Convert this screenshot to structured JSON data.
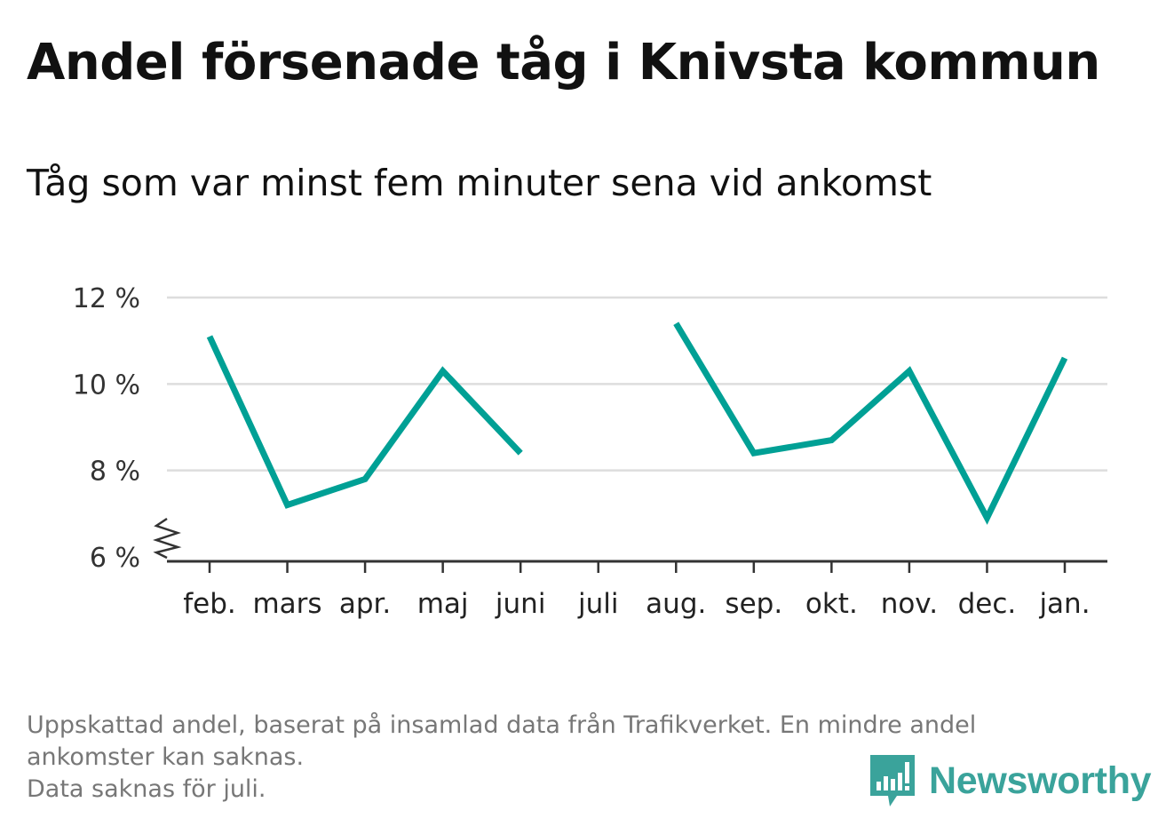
{
  "header": {
    "title": "Andel försenade tåg i Knivsta kommun",
    "subtitle": "Tåg som var minst fem minuter sena vid ankomst"
  },
  "footnote": {
    "line1": "Uppskattad andel, baserat på insamlad data från Trafikverket. En mindre andel",
    "line2": "ankomster kan saknas.",
    "line3": "Data saknas för juli."
  },
  "brand": {
    "name": "Newsworthy",
    "logo_icon": "bar-chart-speech-bubble-icon",
    "color": "#3aa39b"
  },
  "chart_data": {
    "type": "line",
    "title": "Andel försenade tåg i Knivsta kommun",
    "subtitle": "Tåg som var minst fem minuter sena vid ankomst",
    "xlabel": "",
    "ylabel": "",
    "categories": [
      "feb.",
      "mars",
      "apr.",
      "maj",
      "juni",
      "juli",
      "aug.",
      "sep.",
      "okt.",
      "nov.",
      "dec.",
      "jan."
    ],
    "series": [
      {
        "values": [
          11.1,
          7.2,
          7.8,
          10.3,
          8.4,
          null,
          11.4,
          8.4,
          8.7,
          10.3,
          6.9,
          10.6
        ],
        "color": "#00a095"
      }
    ],
    "yticks": [
      6,
      8,
      10,
      12
    ],
    "ytick_labels": [
      "6 %",
      "8 %",
      "10 %",
      "12 %"
    ],
    "ylim": [
      6,
      12
    ],
    "y_axis_break": true,
    "grid": true,
    "gridline_color": "#dddddd",
    "axis_color": "#333333"
  }
}
